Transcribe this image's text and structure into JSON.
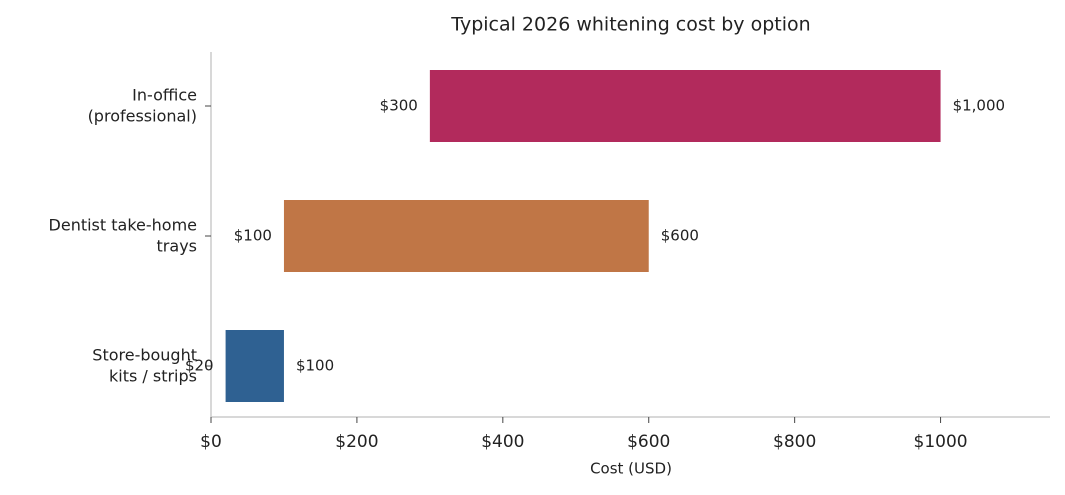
{
  "chart_data": {
    "type": "floating_bar",
    "title": "Typical 2026 whitening cost by option",
    "x_label": "Cost (USD)",
    "categories": [
      "In-office\n(professional)",
      "Dentist take-home\ntrays",
      "Store-bought\nkits / strips"
    ],
    "low": [
      300,
      100,
      20
    ],
    "high": [
      1000,
      600,
      100
    ],
    "low_labels": [
      "$300",
      "$100",
      "$20"
    ],
    "high_labels": [
      "$1,000",
      "$600",
      "$100"
    ],
    "colors": [
      "#b22a5c",
      "#c07646",
      "#2f6192"
    ],
    "xlim": [
      0,
      1150
    ],
    "xticks": [
      {
        "value": 0,
        "label": "$0"
      },
      {
        "value": 200,
        "label": "$200"
      },
      {
        "value": 400,
        "label": "$400"
      },
      {
        "value": 600,
        "label": "$600"
      },
      {
        "value": 800,
        "label": "$800"
      },
      {
        "value": 1000,
        "label": "$1000"
      }
    ],
    "grid": false
  }
}
